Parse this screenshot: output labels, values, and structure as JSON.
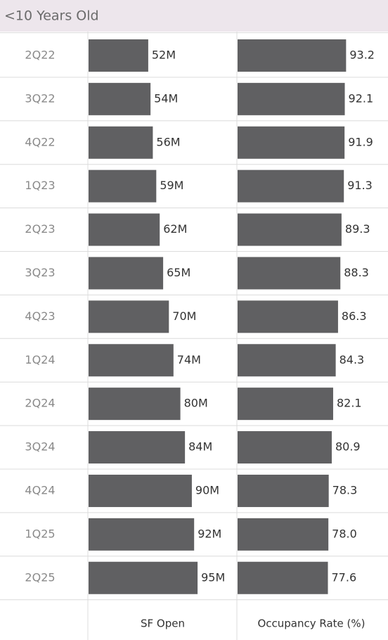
{
  "chart_data": {
    "type": "bar",
    "orientation": "horizontal",
    "title": "<10 Years Old",
    "categories": [
      "2Q22",
      "3Q22",
      "4Q22",
      "1Q23",
      "2Q23",
      "3Q23",
      "4Q23",
      "1Q24",
      "2Q24",
      "3Q24",
      "4Q24",
      "1Q25",
      "2Q25"
    ],
    "series": [
      {
        "name": "SF Open",
        "color": "#606062",
        "values": [
          52,
          54,
          56,
          59,
          62,
          65,
          70,
          74,
          80,
          84,
          90,
          92,
          95
        ],
        "value_labels": [
          "52M",
          "54M",
          "56M",
          "59M",
          "62M",
          "65M",
          "70M",
          "74M",
          "80M",
          "84M",
          "90M",
          "92M",
          "95M"
        ]
      },
      {
        "name": "Occupancy Rate (%)",
        "color": "#606062",
        "values": [
          93.2,
          92.1,
          91.9,
          91.3,
          89.3,
          88.3,
          86.3,
          84.3,
          82.1,
          80.9,
          78.3,
          78.0,
          77.6
        ],
        "value_labels": [
          "93.2",
          "92.1",
          "91.9",
          "91.3",
          "89.3",
          "88.3",
          "86.3",
          "84.3",
          "82.1",
          "80.9",
          "78.3",
          "78.0",
          "77.6"
        ]
      }
    ]
  }
}
